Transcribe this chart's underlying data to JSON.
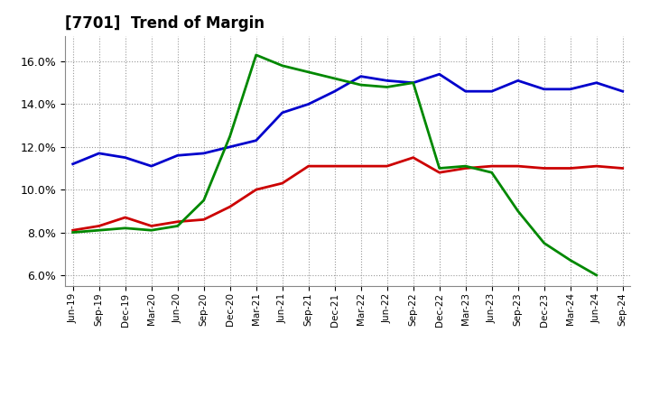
{
  "title": "[7701]  Trend of Margin",
  "x_labels": [
    "Jun-19",
    "Sep-19",
    "Dec-19",
    "Mar-20",
    "Jun-20",
    "Sep-20",
    "Dec-20",
    "Mar-21",
    "Jun-21",
    "Sep-21",
    "Dec-21",
    "Mar-22",
    "Jun-22",
    "Sep-22",
    "Dec-22",
    "Mar-23",
    "Jun-23",
    "Sep-23",
    "Dec-23",
    "Mar-24",
    "Jun-24",
    "Sep-24"
  ],
  "ordinary_income": [
    11.2,
    11.7,
    11.5,
    11.1,
    11.6,
    11.7,
    12.0,
    12.3,
    13.6,
    14.0,
    14.6,
    15.3,
    15.1,
    15.0,
    15.4,
    14.6,
    14.6,
    15.1,
    14.7,
    14.7,
    15.0,
    14.6
  ],
  "net_income": [
    8.1,
    8.3,
    8.7,
    8.3,
    8.5,
    8.6,
    9.2,
    10.0,
    10.3,
    11.1,
    11.1,
    11.1,
    11.1,
    11.5,
    10.8,
    11.0,
    11.1,
    11.1,
    11.0,
    11.0,
    11.1,
    11.0
  ],
  "operating_cashflow": [
    8.0,
    8.1,
    8.2,
    8.1,
    8.3,
    9.5,
    12.5,
    16.3,
    15.8,
    15.5,
    15.2,
    14.9,
    14.8,
    15.0,
    11.0,
    11.1,
    10.8,
    9.0,
    7.5,
    6.7,
    6.0,
    null
  ],
  "ylim": [
    5.5,
    17.2
  ],
  "yticks": [
    6.0,
    8.0,
    10.0,
    12.0,
    14.0,
    16.0
  ],
  "line_color_oi": "#0000cc",
  "line_color_ni": "#cc0000",
  "line_color_ocf": "#008800",
  "background_color": "#ffffff",
  "grid_color": "#999999"
}
